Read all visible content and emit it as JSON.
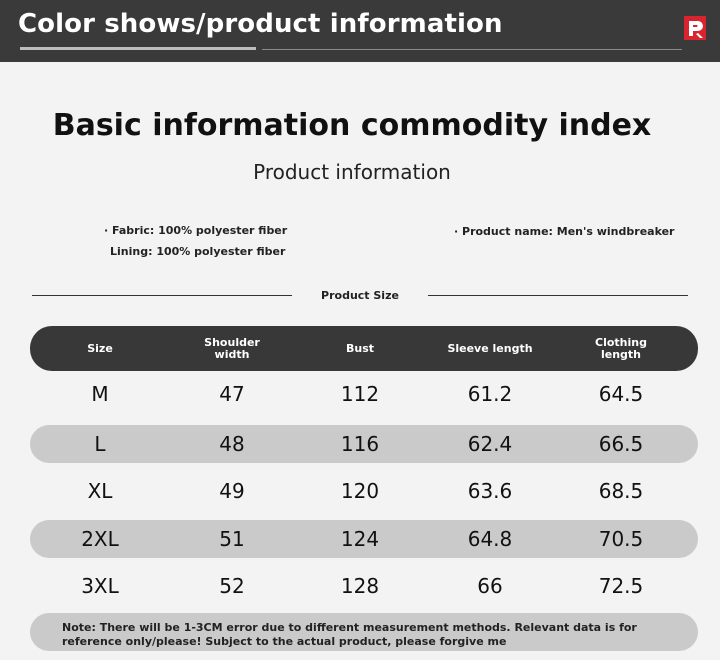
{
  "header": {
    "title": "Color shows/product information"
  },
  "main": {
    "title": "Basic information commodity index",
    "subtitle": "Product information"
  },
  "info": {
    "fabric": "· Fabric: 100% polyester fiber",
    "lining": "Lining: 100% polyester fiber",
    "product_name": "· Product name: Men's windbreaker"
  },
  "table": {
    "section_label": "Product Size",
    "headers": [
      "Size",
      "Shoulder width",
      "Bust",
      "Sleeve length",
      "Clothing length"
    ],
    "rows": [
      [
        "M",
        "47",
        "112",
        "61.2",
        "64.5"
      ],
      [
        "L",
        "48",
        "116",
        "62.4",
        "66.5"
      ],
      [
        "XL",
        "49",
        "120",
        "63.6",
        "68.5"
      ],
      [
        "2XL",
        "51",
        "124",
        "64.8",
        "70.5"
      ],
      [
        "3XL",
        "52",
        "128",
        "66",
        "72.5"
      ]
    ]
  },
  "note": "Note: There will be 1-3CM error due to different measurement methods. Relevant data is for reference only/please! Subject to the actual product, please forgive me",
  "colors": {
    "header_bg": "#3a3a3a",
    "logo_red": "#d9232e",
    "row_shade": "#cacaca",
    "table_head_bg": "#383838"
  }
}
